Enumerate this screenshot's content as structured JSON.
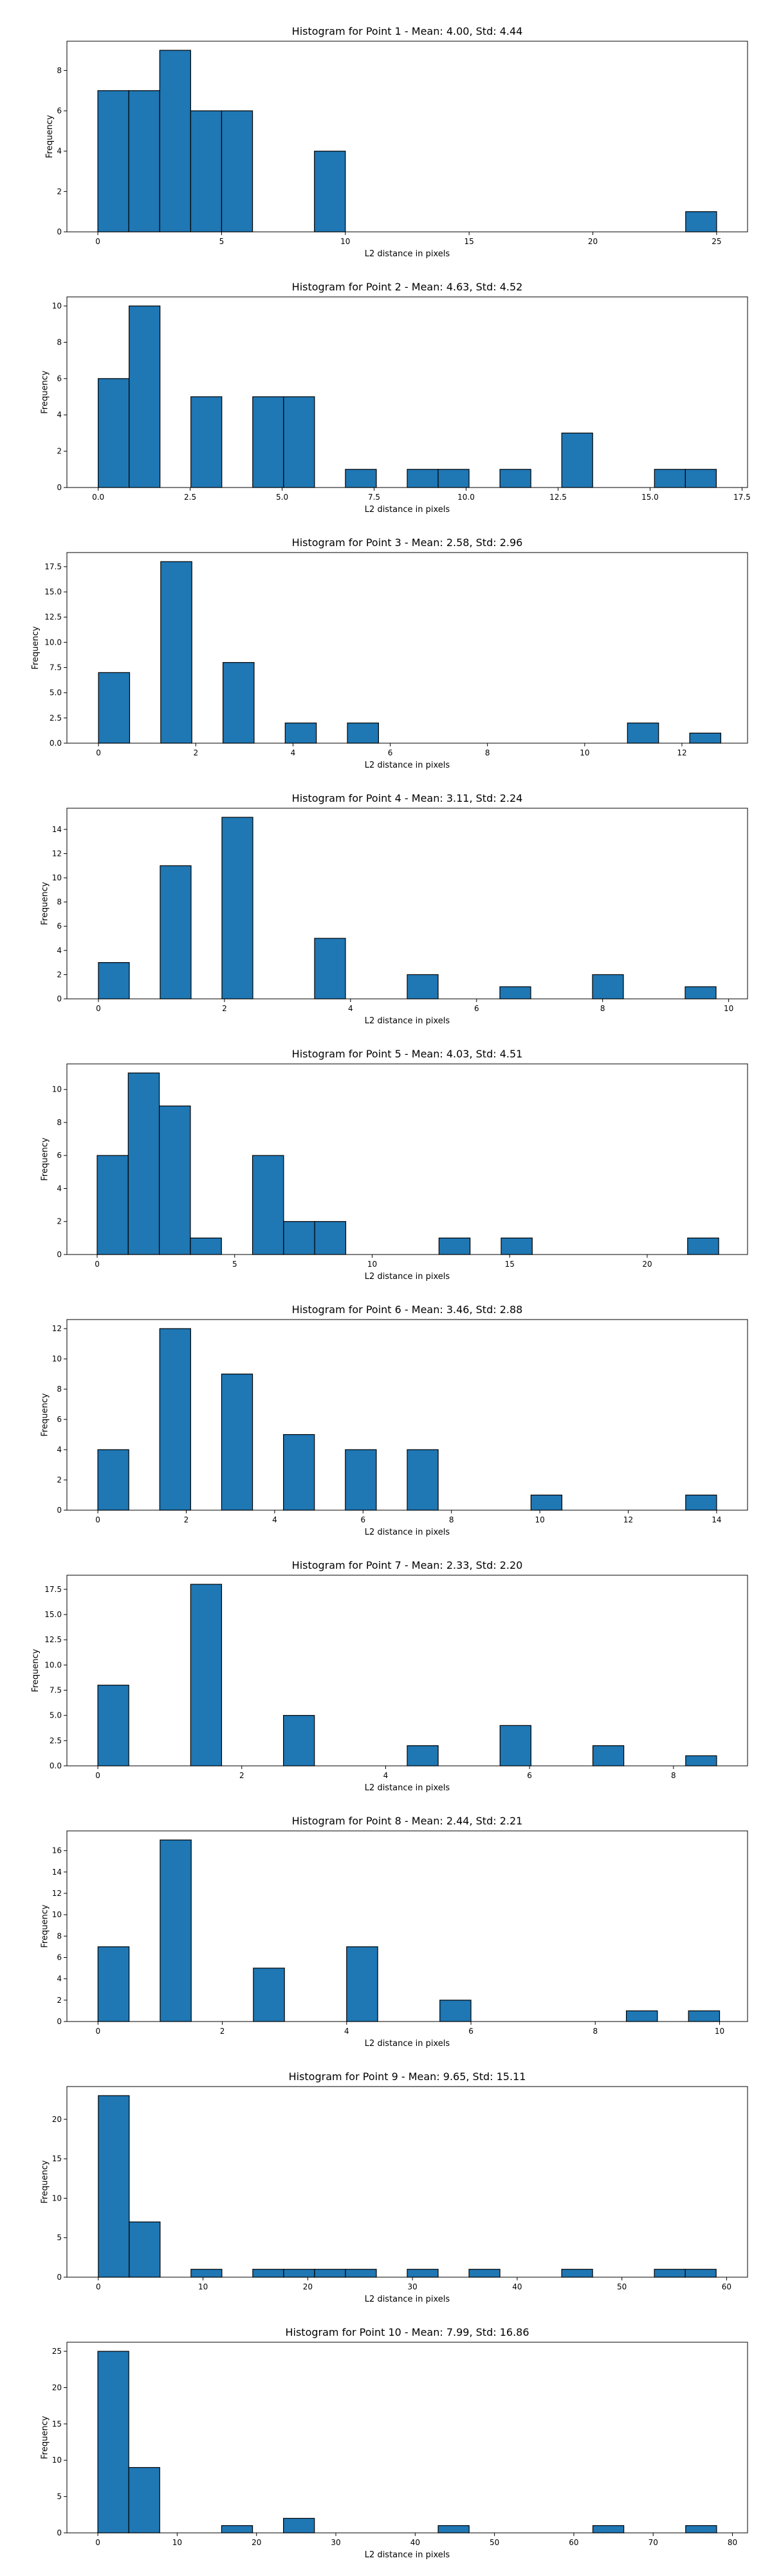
{
  "chart_data": [
    {
      "type": "bar",
      "title": "Histogram for Point 1 - Mean: 4.00, Std: 4.44",
      "xlabel": "L2 distance in pixels",
      "ylabel": "Frequency",
      "xlim": [
        -1.25,
        26.25
      ],
      "ylim": [
        0,
        9.45
      ],
      "xticks": [
        0,
        5,
        10,
        15,
        20,
        25
      ],
      "xtick_labels": [
        "0",
        "5",
        "10",
        "15",
        "20",
        "25"
      ],
      "yticks": [
        0,
        2,
        4,
        6,
        8
      ],
      "ytick_labels": [
        "0",
        "2",
        "4",
        "6",
        "8"
      ],
      "bin_edges": [
        0,
        1.25,
        2.5,
        3.75,
        5,
        6.25,
        7.5,
        8.75,
        10,
        11.25,
        12.5,
        13.75,
        15,
        16.25,
        17.5,
        18.75,
        20,
        21.25,
        22.5,
        23.75,
        25
      ],
      "values": [
        7,
        7,
        9,
        6,
        6,
        0,
        0,
        4,
        0,
        0,
        0,
        0,
        0,
        0,
        0,
        0,
        0,
        0,
        0,
        1
      ],
      "bar_color": "#1f77b4",
      "edge_color": "#000000"
    },
    {
      "type": "bar",
      "title": "Histogram for Point 2 - Mean: 4.63, Std: 4.52",
      "xlabel": "L2 distance in pixels",
      "ylabel": "Frequency",
      "xlim": [
        -0.85,
        17.65
      ],
      "ylim": [
        0,
        10.5
      ],
      "xticks": [
        0,
        2.5,
        5,
        7.5,
        10,
        12.5,
        15,
        17.5
      ],
      "xtick_labels": [
        "0.0",
        "2.5",
        "5.0",
        "7.5",
        "10.0",
        "12.5",
        "15.0",
        "17.5"
      ],
      "yticks": [
        0,
        2,
        4,
        6,
        8,
        10
      ],
      "ytick_labels": [
        "0",
        "2",
        "4",
        "6",
        "8",
        "10"
      ],
      "bin_edges": [
        0,
        0.84,
        1.68,
        2.52,
        3.36,
        4.2,
        5.04,
        5.88,
        6.72,
        7.56,
        8.4,
        9.24,
        10.08,
        10.92,
        11.76,
        12.6,
        13.44,
        14.28,
        15.12,
        15.96,
        16.8
      ],
      "values": [
        6,
        10,
        0,
        5,
        0,
        5,
        5,
        0,
        1,
        0,
        1,
        1,
        0,
        1,
        0,
        3,
        0,
        0,
        1,
        1
      ],
      "bar_color": "#1f77b4",
      "edge_color": "#000000"
    },
    {
      "type": "bar",
      "title": "Histogram for Point 3 - Mean: 2.58, Std: 2.96",
      "xlabel": "L2 distance in pixels",
      "ylabel": "Frequency",
      "xlim": [
        -0.65,
        13.35
      ],
      "ylim": [
        0,
        18.9
      ],
      "xticks": [
        0,
        2,
        4,
        6,
        8,
        10,
        12
      ],
      "xtick_labels": [
        "0",
        "2",
        "4",
        "6",
        "8",
        "10",
        "12"
      ],
      "yticks": [
        0,
        2.5,
        5,
        7.5,
        10,
        12.5,
        15,
        17.5
      ],
      "ytick_labels": [
        "0.0",
        "2.5",
        "5.0",
        "7.5",
        "10.0",
        "12.5",
        "15.0",
        "17.5"
      ],
      "bin_edges": [
        0,
        0.64,
        1.28,
        1.92,
        2.56,
        3.2,
        3.84,
        4.48,
        5.12,
        5.76,
        6.4,
        7.04,
        7.68,
        8.32,
        8.96,
        9.6,
        10.24,
        10.88,
        11.52,
        12.16,
        12.8
      ],
      "values": [
        7,
        0,
        18,
        0,
        8,
        0,
        2,
        0,
        2,
        0,
        0,
        0,
        0,
        0,
        0,
        0,
        0,
        2,
        0,
        1
      ],
      "bar_color": "#1f77b4",
      "edge_color": "#000000"
    },
    {
      "type": "bar",
      "title": "Histogram for Point 4 - Mean: 3.11, Std: 2.24",
      "xlabel": "L2 distance in pixels",
      "ylabel": "Frequency",
      "xlim": [
        -0.5,
        10.3
      ],
      "ylim": [
        0,
        15.75
      ],
      "xticks": [
        0,
        2,
        4,
        6,
        8,
        10
      ],
      "xtick_labels": [
        "0",
        "2",
        "4",
        "6",
        "8",
        "10"
      ],
      "yticks": [
        0,
        2,
        4,
        6,
        8,
        10,
        12,
        14
      ],
      "ytick_labels": [
        "0",
        "2",
        "4",
        "6",
        "8",
        "10",
        "12",
        "14"
      ],
      "bin_edges": [
        0,
        0.49,
        0.98,
        1.47,
        1.96,
        2.45,
        2.94,
        3.43,
        3.92,
        4.41,
        4.9,
        5.39,
        5.88,
        6.37,
        6.86,
        7.35,
        7.84,
        8.33,
        8.82,
        9.31,
        9.8
      ],
      "values": [
        3,
        0,
        11,
        0,
        15,
        0,
        0,
        5,
        0,
        0,
        2,
        0,
        0,
        1,
        0,
        0,
        2,
        0,
        0,
        1
      ],
      "bar_color": "#1f77b4",
      "edge_color": "#000000"
    },
    {
      "type": "bar",
      "title": "Histogram for Point 5 - Mean: 4.03, Std: 4.51",
      "xlabel": "L2 distance in pixels",
      "ylabel": "Frequency",
      "xlim": [
        -1.1,
        23.65
      ],
      "ylim": [
        0,
        11.55
      ],
      "xticks": [
        0,
        5,
        10,
        15,
        20
      ],
      "xtick_labels": [
        "0",
        "5",
        "10",
        "15",
        "20"
      ],
      "yticks": [
        0,
        2,
        4,
        6,
        8,
        10
      ],
      "ytick_labels": [
        "0",
        "2",
        "4",
        "6",
        "8",
        "10"
      ],
      "bin_edges": [
        0,
        1.13,
        2.26,
        3.39,
        4.52,
        5.65,
        6.78,
        7.91,
        9.04,
        10.17,
        11.3,
        12.43,
        13.56,
        14.69,
        15.82,
        16.95,
        18.08,
        19.21,
        20.34,
        21.47,
        22.6
      ],
      "values": [
        6,
        11,
        9,
        1,
        0,
        6,
        2,
        2,
        0,
        0,
        0,
        1,
        0,
        1,
        0,
        0,
        0,
        0,
        0,
        1
      ],
      "bar_color": "#1f77b4",
      "edge_color": "#000000"
    },
    {
      "type": "bar",
      "title": "Histogram for Point 6 - Mean: 3.46, Std: 2.88",
      "xlabel": "L2 distance in pixels",
      "ylabel": "Frequency",
      "xlim": [
        -0.7,
        14.7
      ],
      "ylim": [
        0,
        12.6
      ],
      "xticks": [
        0,
        2,
        4,
        6,
        8,
        10,
        12,
        14
      ],
      "xtick_labels": [
        "0",
        "2",
        "4",
        "6",
        "8",
        "10",
        "12",
        "14"
      ],
      "yticks": [
        0,
        2,
        4,
        6,
        8,
        10,
        12
      ],
      "ytick_labels": [
        "0",
        "2",
        "4",
        "6",
        "8",
        "10",
        "12"
      ],
      "bin_edges": [
        0,
        0.7,
        1.4,
        2.1,
        2.8,
        3.5,
        4.2,
        4.9,
        5.6,
        6.3,
        7,
        7.7,
        8.4,
        9.1,
        9.8,
        10.5,
        11.2,
        11.9,
        12.6,
        13.3,
        14
      ],
      "values": [
        4,
        0,
        12,
        0,
        9,
        0,
        5,
        0,
        4,
        0,
        4,
        0,
        0,
        0,
        1,
        0,
        0,
        0,
        0,
        1
      ],
      "bar_color": "#1f77b4",
      "edge_color": "#000000"
    },
    {
      "type": "bar",
      "title": "Histogram for Point 7 - Mean: 2.33, Std: 2.20",
      "xlabel": "L2 distance in pixels",
      "ylabel": "Frequency",
      "xlim": [
        -0.43,
        9.03
      ],
      "ylim": [
        0,
        18.9
      ],
      "xticks": [
        0,
        2,
        4,
        6,
        8
      ],
      "xtick_labels": [
        "0",
        "2",
        "4",
        "6",
        "8"
      ],
      "yticks": [
        0,
        2.5,
        5,
        7.5,
        10,
        12.5,
        15,
        17.5
      ],
      "ytick_labels": [
        "0.0",
        "2.5",
        "5.0",
        "7.5",
        "10.0",
        "12.5",
        "15.0",
        "17.5"
      ],
      "bin_edges": [
        0,
        0.43,
        0.86,
        1.29,
        1.72,
        2.15,
        2.58,
        3.01,
        3.44,
        3.87,
        4.3,
        4.73,
        5.16,
        5.59,
        6.02,
        6.45,
        6.88,
        7.31,
        7.74,
        8.17,
        8.6
      ],
      "values": [
        8,
        0,
        0,
        18,
        0,
        0,
        5,
        0,
        0,
        0,
        2,
        0,
        0,
        4,
        0,
        0,
        2,
        0,
        0,
        1
      ],
      "bar_color": "#1f77b4",
      "edge_color": "#000000"
    },
    {
      "type": "bar",
      "title": "Histogram for Point 8 - Mean: 2.44, Std: 2.21",
      "xlabel": "L2 distance in pixels",
      "ylabel": "Frequency",
      "xlim": [
        -0.5,
        10.45
      ],
      "ylim": [
        0,
        17.85
      ],
      "xticks": [
        0,
        2,
        4,
        6,
        8,
        10
      ],
      "xtick_labels": [
        "0",
        "2",
        "4",
        "6",
        "8",
        "10"
      ],
      "yticks": [
        0,
        2,
        4,
        6,
        8,
        10,
        12,
        14,
        16
      ],
      "ytick_labels": [
        "0",
        "2",
        "4",
        "6",
        "8",
        "10",
        "12",
        "14",
        "16"
      ],
      "bin_edges": [
        0,
        0.5,
        1,
        1.5,
        2,
        2.5,
        3,
        3.5,
        4,
        4.5,
        5,
        5.5,
        6,
        6.5,
        7,
        7.5,
        8,
        8.5,
        9,
        9.5,
        10
      ],
      "values": [
        7,
        0,
        17,
        0,
        0,
        5,
        0,
        0,
        7,
        0,
        0,
        2,
        0,
        0,
        0,
        0,
        0,
        1,
        0,
        1
      ],
      "bar_color": "#1f77b4",
      "edge_color": "#000000"
    },
    {
      "type": "bar",
      "title": "Histogram for Point 9 - Mean: 9.65, Std: 15.11",
      "xlabel": "L2 distance in pixels",
      "ylabel": "Frequency",
      "xlim": [
        -3,
        62
      ],
      "ylim": [
        0,
        24.15
      ],
      "xticks": [
        0,
        10,
        20,
        30,
        40,
        50,
        60
      ],
      "xtick_labels": [
        "0",
        "10",
        "20",
        "30",
        "40",
        "50",
        "60"
      ],
      "yticks": [
        0,
        5,
        10,
        15,
        20
      ],
      "ytick_labels": [
        "0",
        "5",
        "10",
        "15",
        "20"
      ],
      "bin_edges": [
        0,
        2.95,
        5.9,
        8.85,
        11.8,
        14.75,
        17.7,
        20.65,
        23.6,
        26.55,
        29.5,
        32.45,
        35.4,
        38.35,
        41.3,
        44.25,
        47.2,
        50.15,
        53.1,
        56.05,
        59
      ],
      "values": [
        23,
        7,
        0,
        1,
        0,
        1,
        1,
        1,
        1,
        0,
        1,
        0,
        1,
        0,
        0,
        1,
        0,
        0,
        1,
        1
      ],
      "bar_color": "#1f77b4",
      "edge_color": "#000000"
    },
    {
      "type": "bar",
      "title": "Histogram for Point 10 - Mean: 7.99, Std: 16.86",
      "xlabel": "L2 distance in pixels",
      "ylabel": "Frequency",
      "xlim": [
        -3.9,
        81.9
      ],
      "ylim": [
        0,
        26.25
      ],
      "xticks": [
        0,
        10,
        20,
        30,
        40,
        50,
        60,
        70,
        80
      ],
      "xtick_labels": [
        "0",
        "10",
        "20",
        "30",
        "40",
        "50",
        "60",
        "70",
        "80"
      ],
      "yticks": [
        0,
        5,
        10,
        15,
        20,
        25
      ],
      "ytick_labels": [
        "0",
        "5",
        "10",
        "15",
        "20",
        "25"
      ],
      "bin_edges": [
        0,
        3.9,
        7.8,
        11.7,
        15.6,
        19.5,
        23.4,
        27.3,
        31.2,
        35.1,
        39,
        42.9,
        46.8,
        50.7,
        54.6,
        58.5,
        62.4,
        66.3,
        70.2,
        74.1,
        78
      ],
      "values": [
        25,
        9,
        0,
        0,
        1,
        0,
        2,
        0,
        0,
        0,
        0,
        1,
        0,
        0,
        0,
        0,
        1,
        0,
        0,
        1
      ],
      "bar_color": "#1f77b4",
      "edge_color": "#000000"
    }
  ]
}
